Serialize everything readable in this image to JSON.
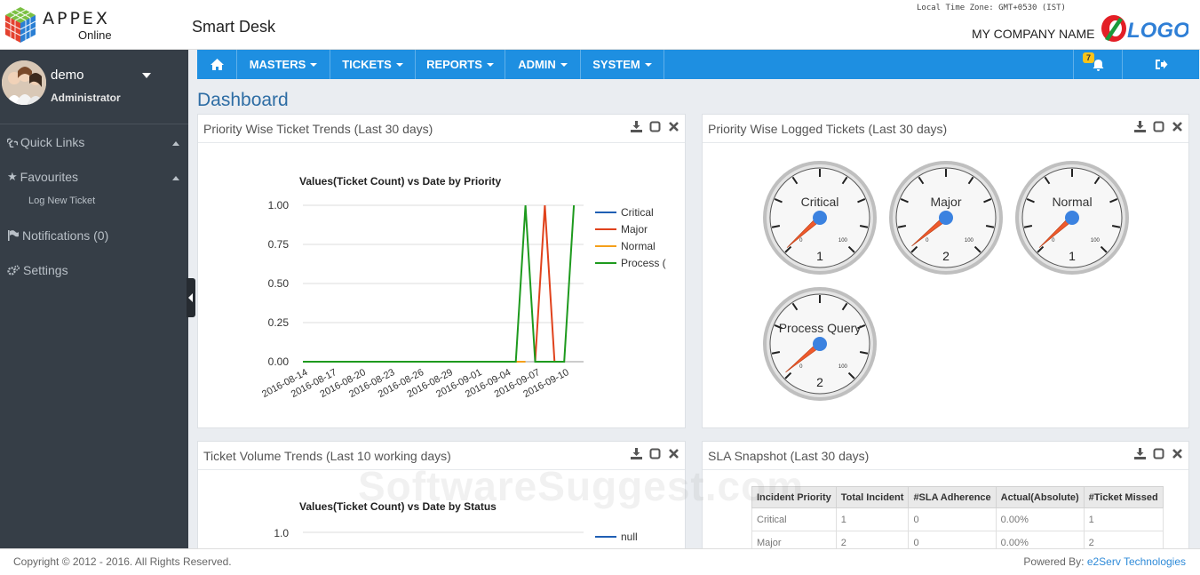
{
  "header": {
    "logo_text": "APPEX",
    "logo_sub": "Online",
    "app_name": "Smart Desk",
    "timezone": "Local Time Zone: GMT+0530 (IST)",
    "company_name": "MY COMPANY NAME",
    "brand_logo_text": "LOGO"
  },
  "user": {
    "name": "demo",
    "role": "Administrator"
  },
  "sidebar": {
    "items": [
      {
        "label": "Quick Links",
        "icon": "link-icon"
      },
      {
        "label": "Favourites",
        "icon": "star-icon",
        "children": [
          "Log New Ticket"
        ]
      },
      {
        "label": "Notifications (0)",
        "icon": "flag-icon"
      },
      {
        "label": "Settings",
        "icon": "gears-icon"
      }
    ]
  },
  "nav": {
    "home_icon": "home-icon",
    "menus": [
      "MASTERS",
      "TICKETS",
      "REPORTS",
      "ADMIN",
      "SYSTEM"
    ],
    "notification_count": "7",
    "logout_icon": "sign-out-icon"
  },
  "page": {
    "title": "Dashboard"
  },
  "panels": {
    "priority_trends": {
      "title": "Priority Wise Ticket Trends (Last 30 days)"
    },
    "logged_tickets": {
      "title": "Priority Wise Logged Tickets (Last 30 days)"
    },
    "volume_trends": {
      "title": "Ticket Volume Trends (Last 10 working days)"
    },
    "sla": {
      "title": "SLA Snapshot (Last 30 days)"
    }
  },
  "chart_data": [
    {
      "type": "line",
      "title": "Values(Ticket Count) vs Date by Priority",
      "xlabel": "",
      "ylabel": "",
      "ylim": [
        0,
        1
      ],
      "yticks": [
        "0.00",
        "0.25",
        "0.50",
        "0.75",
        "1.00"
      ],
      "x_tick_labels": [
        "2016-08-14",
        "2016-08-17",
        "2016-08-20",
        "2016-08-23",
        "2016-08-26",
        "2016-08-29",
        "2016-09-01",
        "2016-09-04",
        "2016-09-07",
        "2016-09-10"
      ],
      "legend_position": "right",
      "series": [
        {
          "name": "Critical",
          "color": "#1f5fb4",
          "values": []
        },
        {
          "name": "Major",
          "color": "#e0421c",
          "points": [
            [
              "2016-09-07",
              0
            ],
            [
              "2016-09-08",
              1
            ],
            [
              "2016-09-09",
              0
            ]
          ]
        },
        {
          "name": "Normal",
          "color": "#f5a01a",
          "points": [
            [
              "2016-09-05",
              0
            ],
            [
              "2016-09-06",
              0
            ]
          ]
        },
        {
          "name": "Process Query",
          "display_name": "Process (",
          "color": "#1e9a1e",
          "points": [
            [
              "2016-08-14",
              0
            ],
            [
              "2016-09-05",
              0
            ],
            [
              "2016-09-06",
              1
            ],
            [
              "2016-09-07",
              0
            ],
            [
              "2016-09-10",
              0
            ],
            [
              "2016-09-11",
              1
            ]
          ]
        }
      ]
    },
    {
      "type": "gauge",
      "title": "",
      "gauges": [
        {
          "name": "Critical",
          "value": 1,
          "min": 0,
          "max": 100
        },
        {
          "name": "Major",
          "value": 2,
          "min": 0,
          "max": 100
        },
        {
          "name": "Normal",
          "value": 1,
          "min": 0,
          "max": 100
        },
        {
          "name": "Process Query",
          "value": 2,
          "min": 0,
          "max": 100
        }
      ]
    },
    {
      "type": "line",
      "title": "Values(Ticket Count) vs Date by Status",
      "yticks": [
        "1.0"
      ],
      "series": [
        {
          "name": "null",
          "color": "#1f5fb4",
          "values": []
        }
      ]
    },
    {
      "type": "table",
      "columns": [
        "Incident Priority",
        "Total Incident",
        "#SLA Adherence",
        "Actual(Absolute)",
        "#Ticket Missed"
      ],
      "rows": [
        [
          "Critical",
          "1",
          "0",
          "0.00%",
          "1"
        ],
        [
          "Major",
          "2",
          "0",
          "0.00%",
          "2"
        ]
      ]
    }
  ],
  "footer": {
    "copyright": "Copyright © 2012 - 2016. All Rights Reserved.",
    "powered_label": "Powered By:",
    "powered_by": "e2Serv Technologies"
  },
  "watermark": "SoftwareSuggest.com"
}
